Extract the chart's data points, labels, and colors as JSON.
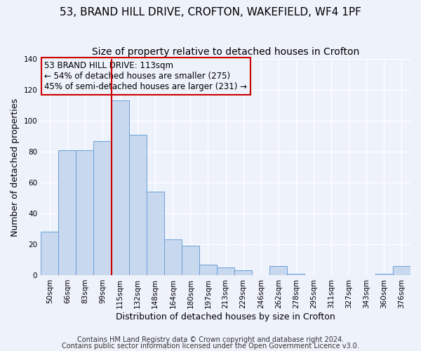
{
  "title": "53, BRAND HILL DRIVE, CROFTON, WAKEFIELD, WF4 1PF",
  "subtitle": "Size of property relative to detached houses in Crofton",
  "xlabel": "Distribution of detached houses by size in Crofton",
  "ylabel": "Number of detached properties",
  "bar_labels": [
    "50sqm",
    "66sqm",
    "83sqm",
    "99sqm",
    "115sqm",
    "132sqm",
    "148sqm",
    "164sqm",
    "180sqm",
    "197sqm",
    "213sqm",
    "229sqm",
    "246sqm",
    "262sqm",
    "278sqm",
    "295sqm",
    "311sqm",
    "327sqm",
    "343sqm",
    "360sqm",
    "376sqm"
  ],
  "bar_values": [
    28,
    81,
    81,
    87,
    113,
    91,
    54,
    23,
    19,
    7,
    5,
    3,
    0,
    6,
    1,
    0,
    0,
    0,
    0,
    1,
    6
  ],
  "bar_color": "#c8d8ee",
  "bar_edge_color": "#6a9fd8",
  "vline_index": 4,
  "vline_color": "#cc0000",
  "annotation_title": "53 BRAND HILL DRIVE: 113sqm",
  "annotation_line1": "← 54% of detached houses are smaller (275)",
  "annotation_line2": "45% of semi-detached houses are larger (231) →",
  "annotation_box_color": "#cc0000",
  "ylim": [
    0,
    140
  ],
  "yticks": [
    0,
    20,
    40,
    60,
    80,
    100,
    120,
    140
  ],
  "footer1": "Contains HM Land Registry data © Crown copyright and database right 2024.",
  "footer2": "Contains public sector information licensed under the Open Government Licence v3.0.",
  "background_color": "#eef2fb",
  "grid_color": "#ffffff",
  "title_fontsize": 11,
  "subtitle_fontsize": 10,
  "axis_label_fontsize": 9,
  "tick_fontsize": 7.5,
  "annotation_fontsize": 8.5,
  "footer_fontsize": 7
}
